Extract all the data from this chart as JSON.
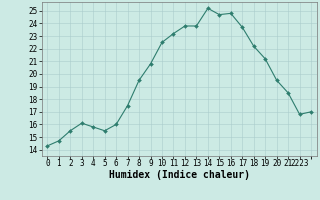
{
  "x": [
    0,
    1,
    2,
    3,
    4,
    5,
    6,
    7,
    8,
    9,
    10,
    11,
    12,
    13,
    14,
    15,
    16,
    17,
    18,
    19,
    20,
    21,
    22,
    23
  ],
  "y": [
    14.3,
    14.7,
    15.5,
    16.1,
    15.8,
    15.5,
    16.0,
    17.5,
    19.5,
    20.8,
    22.5,
    23.2,
    23.8,
    23.8,
    25.2,
    24.7,
    24.8,
    23.7,
    22.2,
    21.2,
    19.5,
    18.5,
    16.8,
    17.0
  ],
  "line_color": "#2e7d6e",
  "marker": "D",
  "markersize": 2.0,
  "linewidth": 0.8,
  "bg_color": "#cceae4",
  "grid_color": "#aacccc",
  "xlabel": "Humidex (Indice chaleur)",
  "xlabel_fontsize": 7,
  "ylabel_ticks": [
    14,
    15,
    16,
    17,
    18,
    19,
    20,
    21,
    22,
    23,
    24,
    25
  ],
  "xlim": [
    -0.5,
    23.5
  ],
  "ylim": [
    13.5,
    25.7
  ],
  "tick_fontsize": 5.5
}
